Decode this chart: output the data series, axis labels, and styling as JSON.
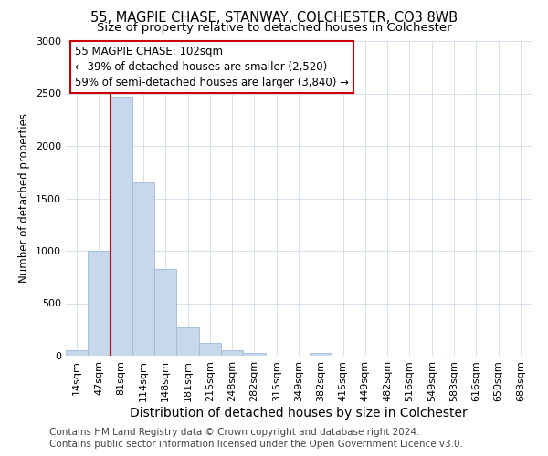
{
  "title": "55, MAGPIE CHASE, STANWAY, COLCHESTER, CO3 8WB",
  "subtitle": "Size of property relative to detached houses in Colchester",
  "xlabel": "Distribution of detached houses by size in Colchester",
  "ylabel": "Number of detached properties",
  "bar_labels": [
    "14sqm",
    "47sqm",
    "81sqm",
    "114sqm",
    "148sqm",
    "181sqm",
    "215sqm",
    "248sqm",
    "282sqm",
    "315sqm",
    "349sqm",
    "382sqm",
    "415sqm",
    "449sqm",
    "482sqm",
    "516sqm",
    "549sqm",
    "583sqm",
    "616sqm",
    "650sqm",
    "683sqm"
  ],
  "bar_values": [
    50,
    1000,
    2470,
    1650,
    830,
    270,
    120,
    50,
    30,
    0,
    0,
    25,
    0,
    0,
    0,
    0,
    0,
    0,
    0,
    0,
    0
  ],
  "bar_color": "#c8d8ec",
  "bar_edgecolor": "#a0bcd8",
  "vline_color": "#cc0000",
  "vline_x_index": 2,
  "ylim": [
    0,
    3000
  ],
  "yticks": [
    0,
    500,
    1000,
    1500,
    2000,
    2500,
    3000
  ],
  "annotation_line1": "55 MAGPIE CHASE: 102sqm",
  "annotation_line2": "← 39% of detached houses are smaller (2,520)",
  "annotation_line3": "59% of semi-detached houses are larger (3,840) →",
  "annotation_box_color": "#cc0000",
  "footer_line1": "Contains HM Land Registry data © Crown copyright and database right 2024.",
  "footer_line2": "Contains public sector information licensed under the Open Government Licence v3.0.",
  "bg_color": "#ffffff",
  "grid_color": "#d0dcea",
  "title_fontsize": 10.5,
  "subtitle_fontsize": 9.5,
  "xlabel_fontsize": 10,
  "ylabel_fontsize": 8.5,
  "tick_fontsize": 8,
  "annotation_fontsize": 8.5,
  "footer_fontsize": 7.5
}
